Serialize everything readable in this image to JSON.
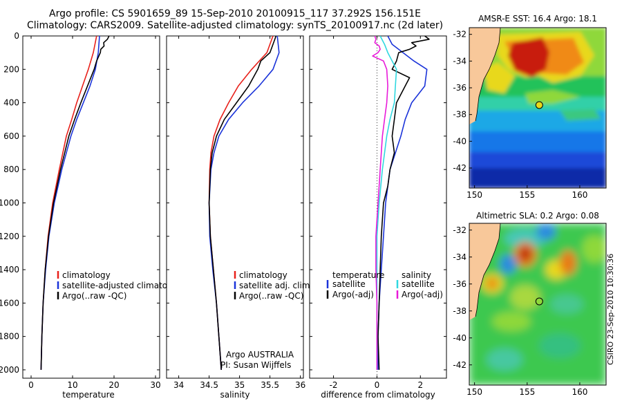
{
  "header": {
    "line1": "Argo profile: CS 5901659_89 15-Sep-2010 20100915_117 37.292S 156.151E",
    "line2": "Climatology: CARS2009. Satellite-adjusted climatology: synTS_20100917.nc (2d later)"
  },
  "side_credit": "CSIRO 23-Sep-2010 10:30:36",
  "panel_text": {
    "argo_program": "Argo AUSTRALIA",
    "pi": "PI: Susan Wijffels"
  },
  "colors": {
    "climatology": "#e8201a",
    "satellite": "#1a33d9",
    "argo": "#000000",
    "sat_salinity": "#2fd8e0",
    "argo_salinity": "#e81ad9"
  },
  "chart_data": [
    {
      "type": "line",
      "xlabel": "temperature",
      "ylabel": "",
      "xlim": [
        -2,
        31
      ],
      "ylim": [
        2050,
        0
      ],
      "xticks": [
        0,
        10,
        20,
        30
      ],
      "yticks": [
        0,
        200,
        400,
        600,
        800,
        1000,
        1200,
        1400,
        1600,
        1800,
        2000
      ],
      "legend": [
        "climatology",
        "satellite-adjusted climatology",
        "Argo(..raw -QC)"
      ],
      "series": [
        {
          "name": "climatology",
          "color": "#e8201a",
          "depth": [
            0,
            100,
            200,
            300,
            400,
            500,
            600,
            800,
            1000,
            1200,
            1400,
            1600,
            1800,
            2000
          ],
          "values": [
            15.8,
            15.0,
            13.8,
            12.4,
            11.0,
            9.8,
            8.5,
            6.8,
            5.2,
            4.1,
            3.4,
            2.9,
            2.6,
            2.4
          ]
        },
        {
          "name": "satellite-adjusted climatology",
          "color": "#1a33d9",
          "depth": [
            0,
            100,
            200,
            300,
            400,
            500,
            600,
            800,
            1000,
            1200,
            1400,
            1600,
            1800,
            2000
          ],
          "values": [
            16.5,
            16.2,
            15.5,
            14.2,
            12.6,
            11.0,
            9.6,
            7.4,
            5.6,
            4.3,
            3.5,
            2.9,
            2.6,
            2.4
          ]
        },
        {
          "name": "Argo(..raw -QC)",
          "color": "#000000",
          "depth": [
            0,
            20,
            40,
            60,
            80,
            100,
            150,
            200,
            300,
            400,
            500,
            600,
            800,
            1000,
            1200,
            1400,
            1600,
            1800,
            2000
          ],
          "values": [
            18.8,
            18.4,
            17.5,
            17.6,
            16.8,
            16.7,
            15.8,
            15.2,
            13.6,
            12.0,
            10.5,
            9.1,
            7.1,
            5.4,
            4.2,
            3.4,
            2.9,
            2.6,
            2.4
          ]
        }
      ]
    },
    {
      "type": "line",
      "xlabel": "salinity",
      "ylabel": "",
      "xlim": [
        33.8,
        36.05
      ],
      "ylim": [
        2050,
        0
      ],
      "xticks": [
        34,
        34.5,
        35,
        35.5,
        36
      ],
      "legend": [
        "climatology",
        "satellite adj. clim.",
        "Argo(..raw -QC)"
      ],
      "series": [
        {
          "name": "climatology",
          "color": "#e8201a",
          "depth": [
            0,
            100,
            200,
            300,
            400,
            500,
            600,
            700,
            800,
            1000,
            1200,
            1400,
            1600,
            1800,
            2000
          ],
          "values": [
            35.55,
            35.45,
            35.2,
            34.98,
            34.82,
            34.68,
            34.58,
            34.53,
            34.51,
            34.5,
            34.52,
            34.57,
            34.62,
            34.66,
            34.7
          ]
        },
        {
          "name": "satellite adj. clim.",
          "color": "#1a33d9",
          "depth": [
            0,
            100,
            200,
            300,
            400,
            500,
            600,
            700,
            800,
            1000,
            1200,
            1400,
            1600,
            1800,
            2000
          ],
          "values": [
            35.62,
            35.65,
            35.55,
            35.32,
            35.05,
            34.82,
            34.66,
            34.58,
            34.53,
            34.5,
            34.51,
            34.56,
            34.62,
            34.66,
            34.7
          ]
        },
        {
          "name": "Argo(..raw -QC)",
          "color": "#000000",
          "depth": [
            0,
            50,
            100,
            150,
            200,
            300,
            400,
            500,
            600,
            700,
            800,
            1000,
            1200,
            1400,
            1600,
            1800,
            2000
          ],
          "values": [
            35.6,
            35.55,
            35.5,
            35.35,
            35.3,
            35.15,
            34.95,
            34.75,
            34.62,
            34.55,
            34.52,
            34.5,
            34.52,
            34.57,
            34.62,
            34.66,
            34.7
          ]
        }
      ]
    },
    {
      "type": "line",
      "xlabel": "difference from climatology",
      "ylabel": "",
      "xlim": [
        -3.1,
        3.2
      ],
      "ylim": [
        2050,
        0
      ],
      "xticks": [
        -2,
        0,
        2
      ],
      "legend_titles": [
        "temperature",
        "salinity"
      ],
      "legend": [
        "satellite",
        "Argo(-adj)",
        "satellite",
        "Argo(-adj)"
      ],
      "series": [
        {
          "name": "satellite",
          "group": "temperature",
          "color": "#1a33d9",
          "depth": [
            0,
            50,
            100,
            150,
            200,
            300,
            400,
            500,
            600,
            800,
            1000,
            1200,
            1400,
            1600,
            1800,
            2000
          ],
          "values": [
            0.5,
            0.7,
            1.2,
            1.7,
            2.3,
            2.2,
            1.6,
            1.3,
            1.1,
            0.6,
            0.4,
            0.3,
            0.2,
            0.1,
            0.05,
            0.05
          ]
        },
        {
          "name": "Argo(-adj)",
          "group": "temperature",
          "color": "#000000",
          "depth": [
            0,
            20,
            40,
            60,
            80,
            100,
            150,
            200,
            250,
            300,
            400,
            500,
            600,
            700,
            800,
            900,
            1000,
            1200,
            1400,
            1600,
            1800,
            2000
          ],
          "values": [
            2.2,
            2.4,
            1.6,
            1.8,
            1.5,
            1.0,
            0.9,
            0.7,
            1.5,
            1.3,
            0.9,
            0.8,
            0.7,
            0.8,
            0.6,
            0.5,
            0.3,
            0.2,
            0.15,
            0.1,
            0.05,
            0.1
          ]
        },
        {
          "name": "satellite",
          "group": "salinity",
          "color": "#2fd8e0",
          "depth": [
            0,
            50,
            100,
            150,
            200,
            300,
            400,
            500,
            600,
            800,
            1000,
            1200,
            1400,
            1600,
            1800,
            2000
          ],
          "values": [
            0.15,
            0.35,
            0.5,
            0.7,
            0.9,
            0.85,
            0.8,
            0.6,
            0.45,
            0.25,
            0.1,
            0.0,
            0.0,
            0.0,
            0.0,
            0.0
          ]
        },
        {
          "name": "Argo(-adj)",
          "group": "salinity",
          "color": "#e81ad9",
          "depth": [
            0,
            20,
            40,
            60,
            80,
            100,
            120,
            150,
            200,
            300,
            400,
            500,
            600,
            800,
            1000,
            1200,
            1400,
            1600,
            1800,
            2000
          ],
          "values": [
            -0.1,
            -0.05,
            -0.1,
            0.1,
            0.15,
            0.05,
            -0.2,
            0.3,
            0.45,
            0.5,
            0.45,
            0.35,
            0.25,
            0.15,
            0.05,
            -0.05,
            -0.05,
            0.0,
            0.0,
            0.0
          ]
        }
      ]
    },
    {
      "type": "heatmap",
      "title": "AMSR-E SST: 16.4 Argo: 18.1",
      "xlim": [
        149.5,
        162.5
      ],
      "ylim": [
        -43.5,
        -31.5
      ],
      "xticks": [
        150,
        155,
        160
      ],
      "yticks": [
        -32,
        -34,
        -36,
        -38,
        -40,
        -42
      ],
      "argo_position": {
        "lon": 156.151,
        "lat": -37.292
      }
    },
    {
      "type": "heatmap",
      "title": "Altimetric SLA: 0.2 Argo: 0.08",
      "xlim": [
        149.5,
        162.5
      ],
      "ylim": [
        -43.5,
        -31.5
      ],
      "xticks": [
        150,
        155,
        160
      ],
      "yticks": [
        -32,
        -34,
        -36,
        -38,
        -40,
        -42
      ],
      "argo_position": {
        "lon": 156.151,
        "lat": -37.292
      }
    }
  ]
}
